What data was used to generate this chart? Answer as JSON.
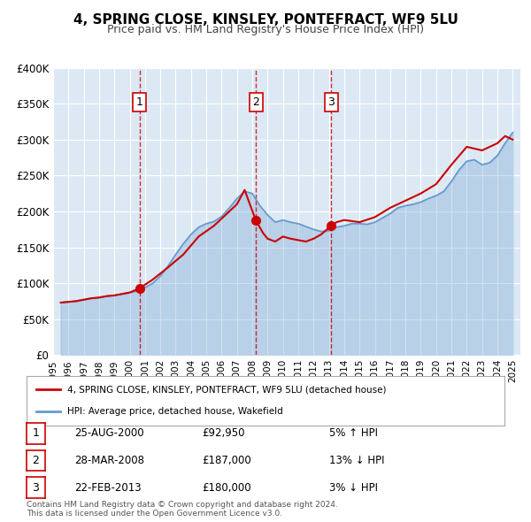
{
  "title": "4, SPRING CLOSE, KINSLEY, PONTEFRACT, WF9 5LU",
  "subtitle": "Price paid vs. HM Land Registry's House Price Index (HPI)",
  "bg_color": "#dce9f5",
  "plot_bg_color": "#dce9f5",
  "red_line_color": "#cc0000",
  "blue_line_color": "#6699cc",
  "xlabel": "",
  "ylabel": "",
  "ylim": [
    0,
    400000
  ],
  "yticks": [
    0,
    50000,
    100000,
    150000,
    200000,
    250000,
    300000,
    350000,
    400000
  ],
  "ytick_labels": [
    "£0",
    "£50K",
    "£100K",
    "£150K",
    "£200K",
    "£250K",
    "£300K",
    "£350K",
    "£400K"
  ],
  "sale_dates": [
    2000.65,
    2008.24,
    2013.15
  ],
  "sale_prices": [
    92950,
    187000,
    180000
  ],
  "sale_labels": [
    "1",
    "2",
    "3"
  ],
  "vline_dates": [
    2000.65,
    2008.24,
    2013.15
  ],
  "legend_red_label": "4, SPRING CLOSE, KINSLEY, PONTEFRACT, WF9 5LU (detached house)",
  "legend_blue_label": "HPI: Average price, detached house, Wakefield",
  "table_rows": [
    {
      "num": "1",
      "date": "25-AUG-2000",
      "price": "£92,950",
      "hpi": "5% ↑ HPI"
    },
    {
      "num": "2",
      "date": "28-MAR-2008",
      "price": "£187,000",
      "hpi": "13% ↓ HPI"
    },
    {
      "num": "3",
      "date": "22-FEB-2013",
      "price": "£180,000",
      "hpi": "3% ↓ HPI"
    }
  ],
  "footer": "Contains HM Land Registry data © Crown copyright and database right 2024.\nThis data is licensed under the Open Government Licence v3.0.",
  "xmin": 1995.0,
  "xmax": 2025.5
}
